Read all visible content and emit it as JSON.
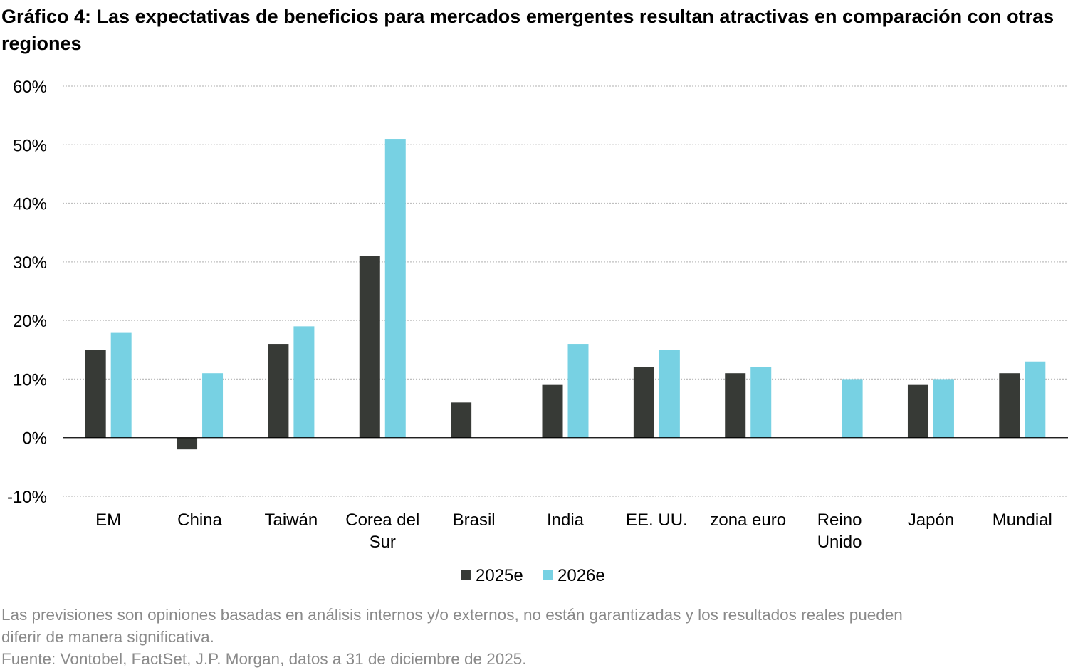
{
  "title": "Gráfico 4: Las expectativas de beneficios para mercados emergentes resultan atractivas en comparación con otras regiones",
  "notes": {
    "disclaimer_line1": "Las previsiones son opiniones basadas en análisis internos y/o externos, no están garantizadas y los resultados reales pueden",
    "disclaimer_line2": "diferir de manera significativa.",
    "source": "Fuente: Vontobel, FactSet, J.P. Morgan, datos a 31 de diciembre de 2025."
  },
  "colors": {
    "series_2025": "#373a36",
    "series_2026": "#77d1e3",
    "grid": "#bfbfbf",
    "axis": "#000000"
  },
  "chart_data": {
    "type": "bar",
    "categories": [
      [
        "EM"
      ],
      [
        "China"
      ],
      [
        "Taiwán"
      ],
      [
        "Corea del",
        "Sur"
      ],
      [
        "Brasil"
      ],
      [
        "India"
      ],
      [
        "EE. UU."
      ],
      [
        "zona euro"
      ],
      [
        "Reino",
        "Unido"
      ],
      [
        "Japón"
      ],
      [
        "Mundial"
      ]
    ],
    "series": [
      {
        "name": "2025e",
        "values": [
          15,
          -2,
          16,
          31,
          6,
          9,
          12,
          11,
          0,
          9,
          11
        ]
      },
      {
        "name": "2026e",
        "values": [
          18,
          11,
          19,
          51,
          0,
          16,
          15,
          12,
          10,
          10,
          13
        ]
      }
    ],
    "brasil_2026e_note": "",
    "ylim": [
      -10,
      60
    ],
    "yticks": [
      -10,
      0,
      10,
      20,
      30,
      40,
      50,
      60
    ],
    "ytick_labels": [
      "-10%",
      "0%",
      "10%",
      "20%",
      "30%",
      "40%",
      "50%",
      "60%"
    ],
    "grid": true,
    "legend": "bottom-center"
  }
}
